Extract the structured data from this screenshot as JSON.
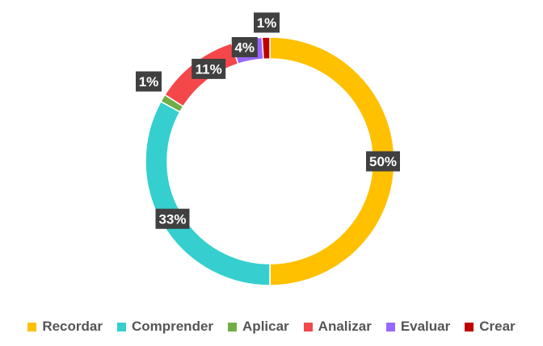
{
  "chart_data": {
    "type": "pie",
    "variant": "donut",
    "title": "",
    "legend_position": "bottom",
    "categories": [
      "Recordar",
      "Comprender",
      "Aplicar",
      "Analizar",
      "Evaluar",
      "Crear"
    ],
    "values": [
      50,
      33,
      1,
      11,
      4,
      1
    ],
    "data_labels": [
      "50%",
      "33%",
      "1%",
      "11%",
      "4%",
      "1%"
    ],
    "colors": [
      "#ffc000",
      "#36cfcf",
      "#70ad47",
      "#f4474a",
      "#9966ff",
      "#c00000"
    ]
  }
}
